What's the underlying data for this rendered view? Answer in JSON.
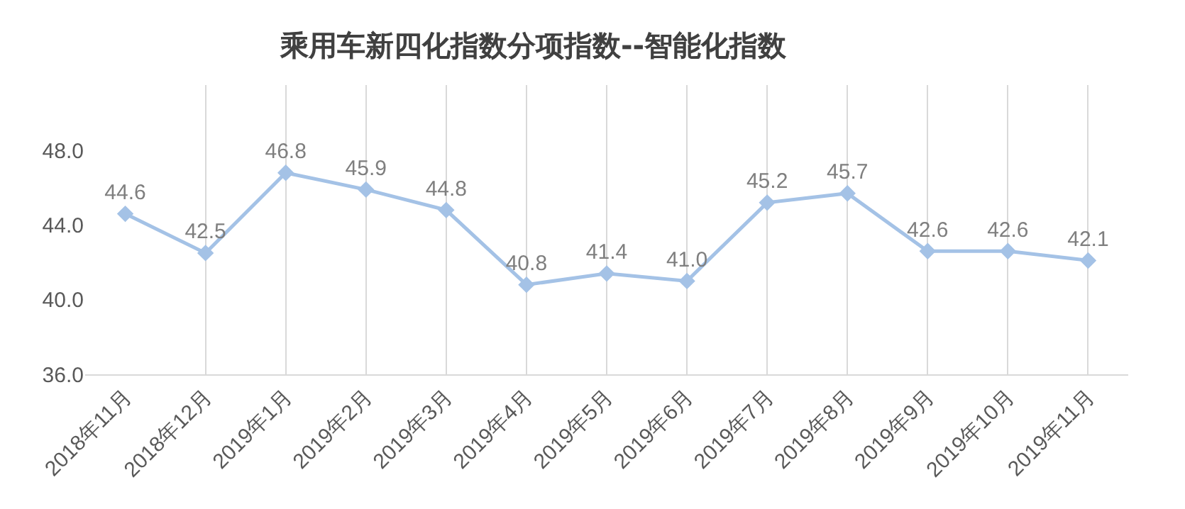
{
  "chart_data": {
    "type": "line",
    "title": "乘用车新四化指数分项指数--智能化指数",
    "categories": [
      "2018年11月",
      "2018年12月",
      "2019年1月",
      "2019年2月",
      "2019年3月",
      "2019年4月",
      "2019年5月",
      "2019年6月",
      "2019年7月",
      "2019年8月",
      "2019年9月",
      "2019年10月",
      "2019年11月"
    ],
    "series": [
      {
        "color": "#a4c2e6",
        "values": [
          44.6,
          42.5,
          46.8,
          45.9,
          44.8,
          40.8,
          41.4,
          41.0,
          45.2,
          45.7,
          42.6,
          42.6,
          42.1
        ],
        "value_labels": [
          "44.6",
          "42.5",
          "46.8",
          "45.9",
          "44.8",
          "40.8",
          "41.4",
          "41.0",
          "45.2",
          "45.7",
          "42.6",
          "42.6",
          "42.1"
        ]
      }
    ],
    "ylim": [
      36,
      51.5
    ],
    "yticks": [
      {
        "value": 36,
        "label": "36.0"
      },
      {
        "value": 40,
        "label": "40.0"
      },
      {
        "value": 44,
        "label": "44.0"
      },
      {
        "value": 48,
        "label": "48.0"
      }
    ],
    "grid": "x",
    "marker": "diamond",
    "line_style": "solid",
    "legend": false
  }
}
